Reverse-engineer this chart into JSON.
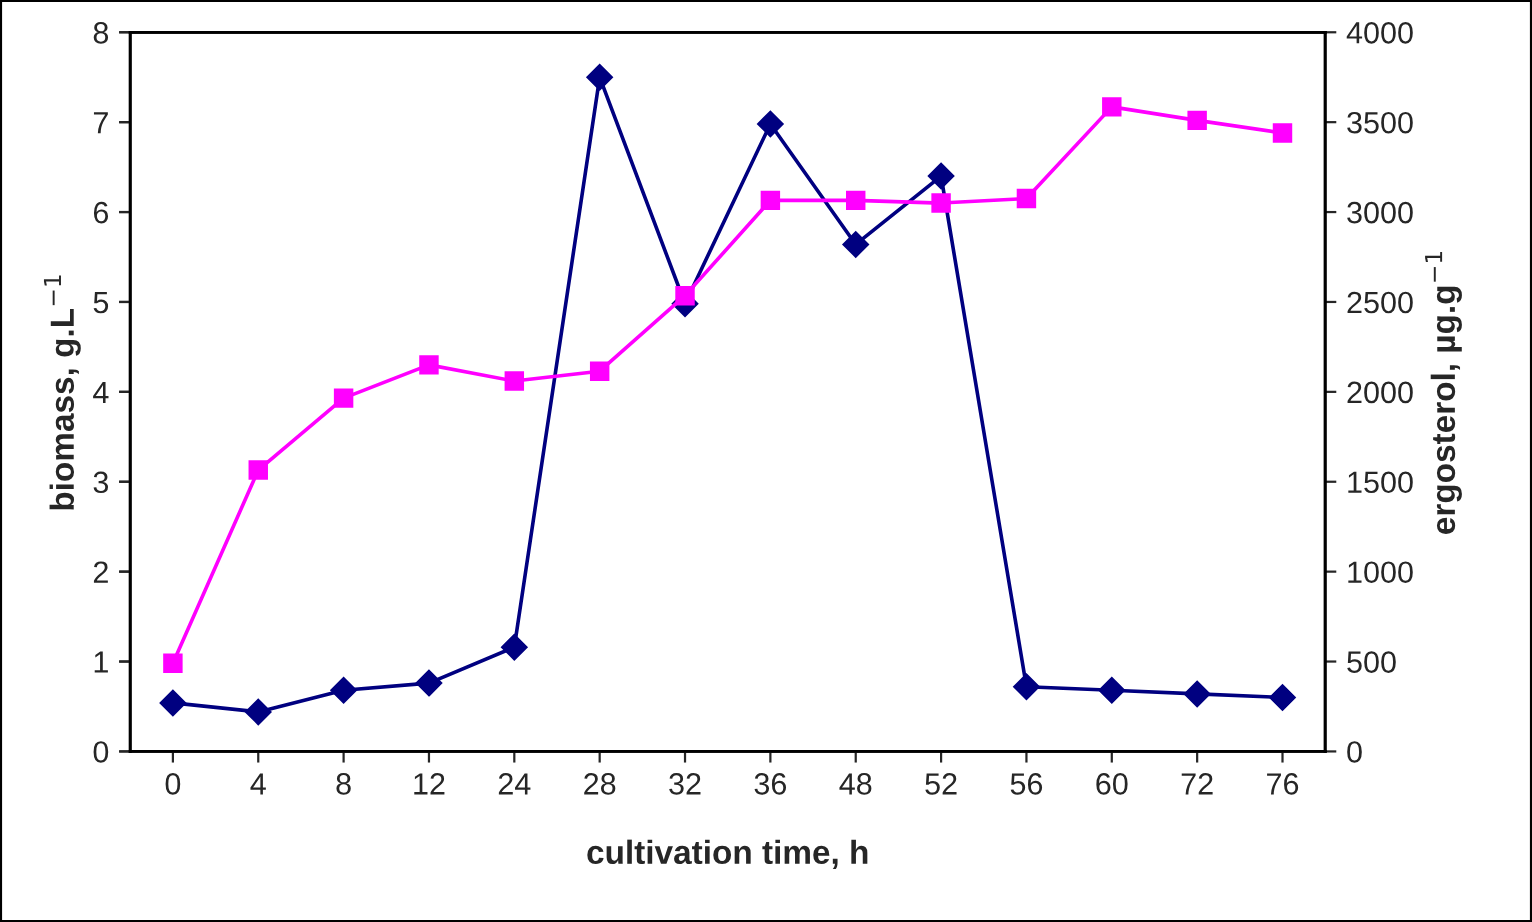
{
  "chart_data": {
    "type": "line",
    "xlabel": "cultivation time, h",
    "ylabel": "biomass, g.L$^{−1}$",
    "y2label": "ergosterol, µg.g$^{−1}$",
    "categories": [
      "0",
      "4",
      "8",
      "12",
      "24",
      "28",
      "32",
      "36",
      "48",
      "52",
      "56",
      "60",
      "72",
      "76"
    ],
    "series": [
      {
        "color": "#ff00ff",
        "marker": "square",
        "values": [
          0.98,
          3.13,
          3.93,
          4.3,
          4.12,
          4.23,
          5.07,
          6.13,
          6.13,
          6.1,
          6.15,
          7.17,
          7.02,
          6.88
        ]
      },
      {
        "color": "#000080",
        "marker": "diamond",
        "axis": "y2",
        "values": [
          270,
          220,
          340,
          380,
          580,
          3750,
          2490,
          3490,
          2820,
          3200,
          360,
          340,
          320,
          300
        ]
      }
    ],
    "ylim": [
      0,
      8
    ],
    "yticks": [
      0,
      1,
      2,
      3,
      4,
      5,
      6,
      7,
      8
    ],
    "y2lim": [
      0,
      4000
    ],
    "y2ticks": [
      0,
      500,
      1000,
      1500,
      2000,
      2500,
      3000,
      3500,
      4000
    ],
    "grid": false,
    "legend": false
  }
}
